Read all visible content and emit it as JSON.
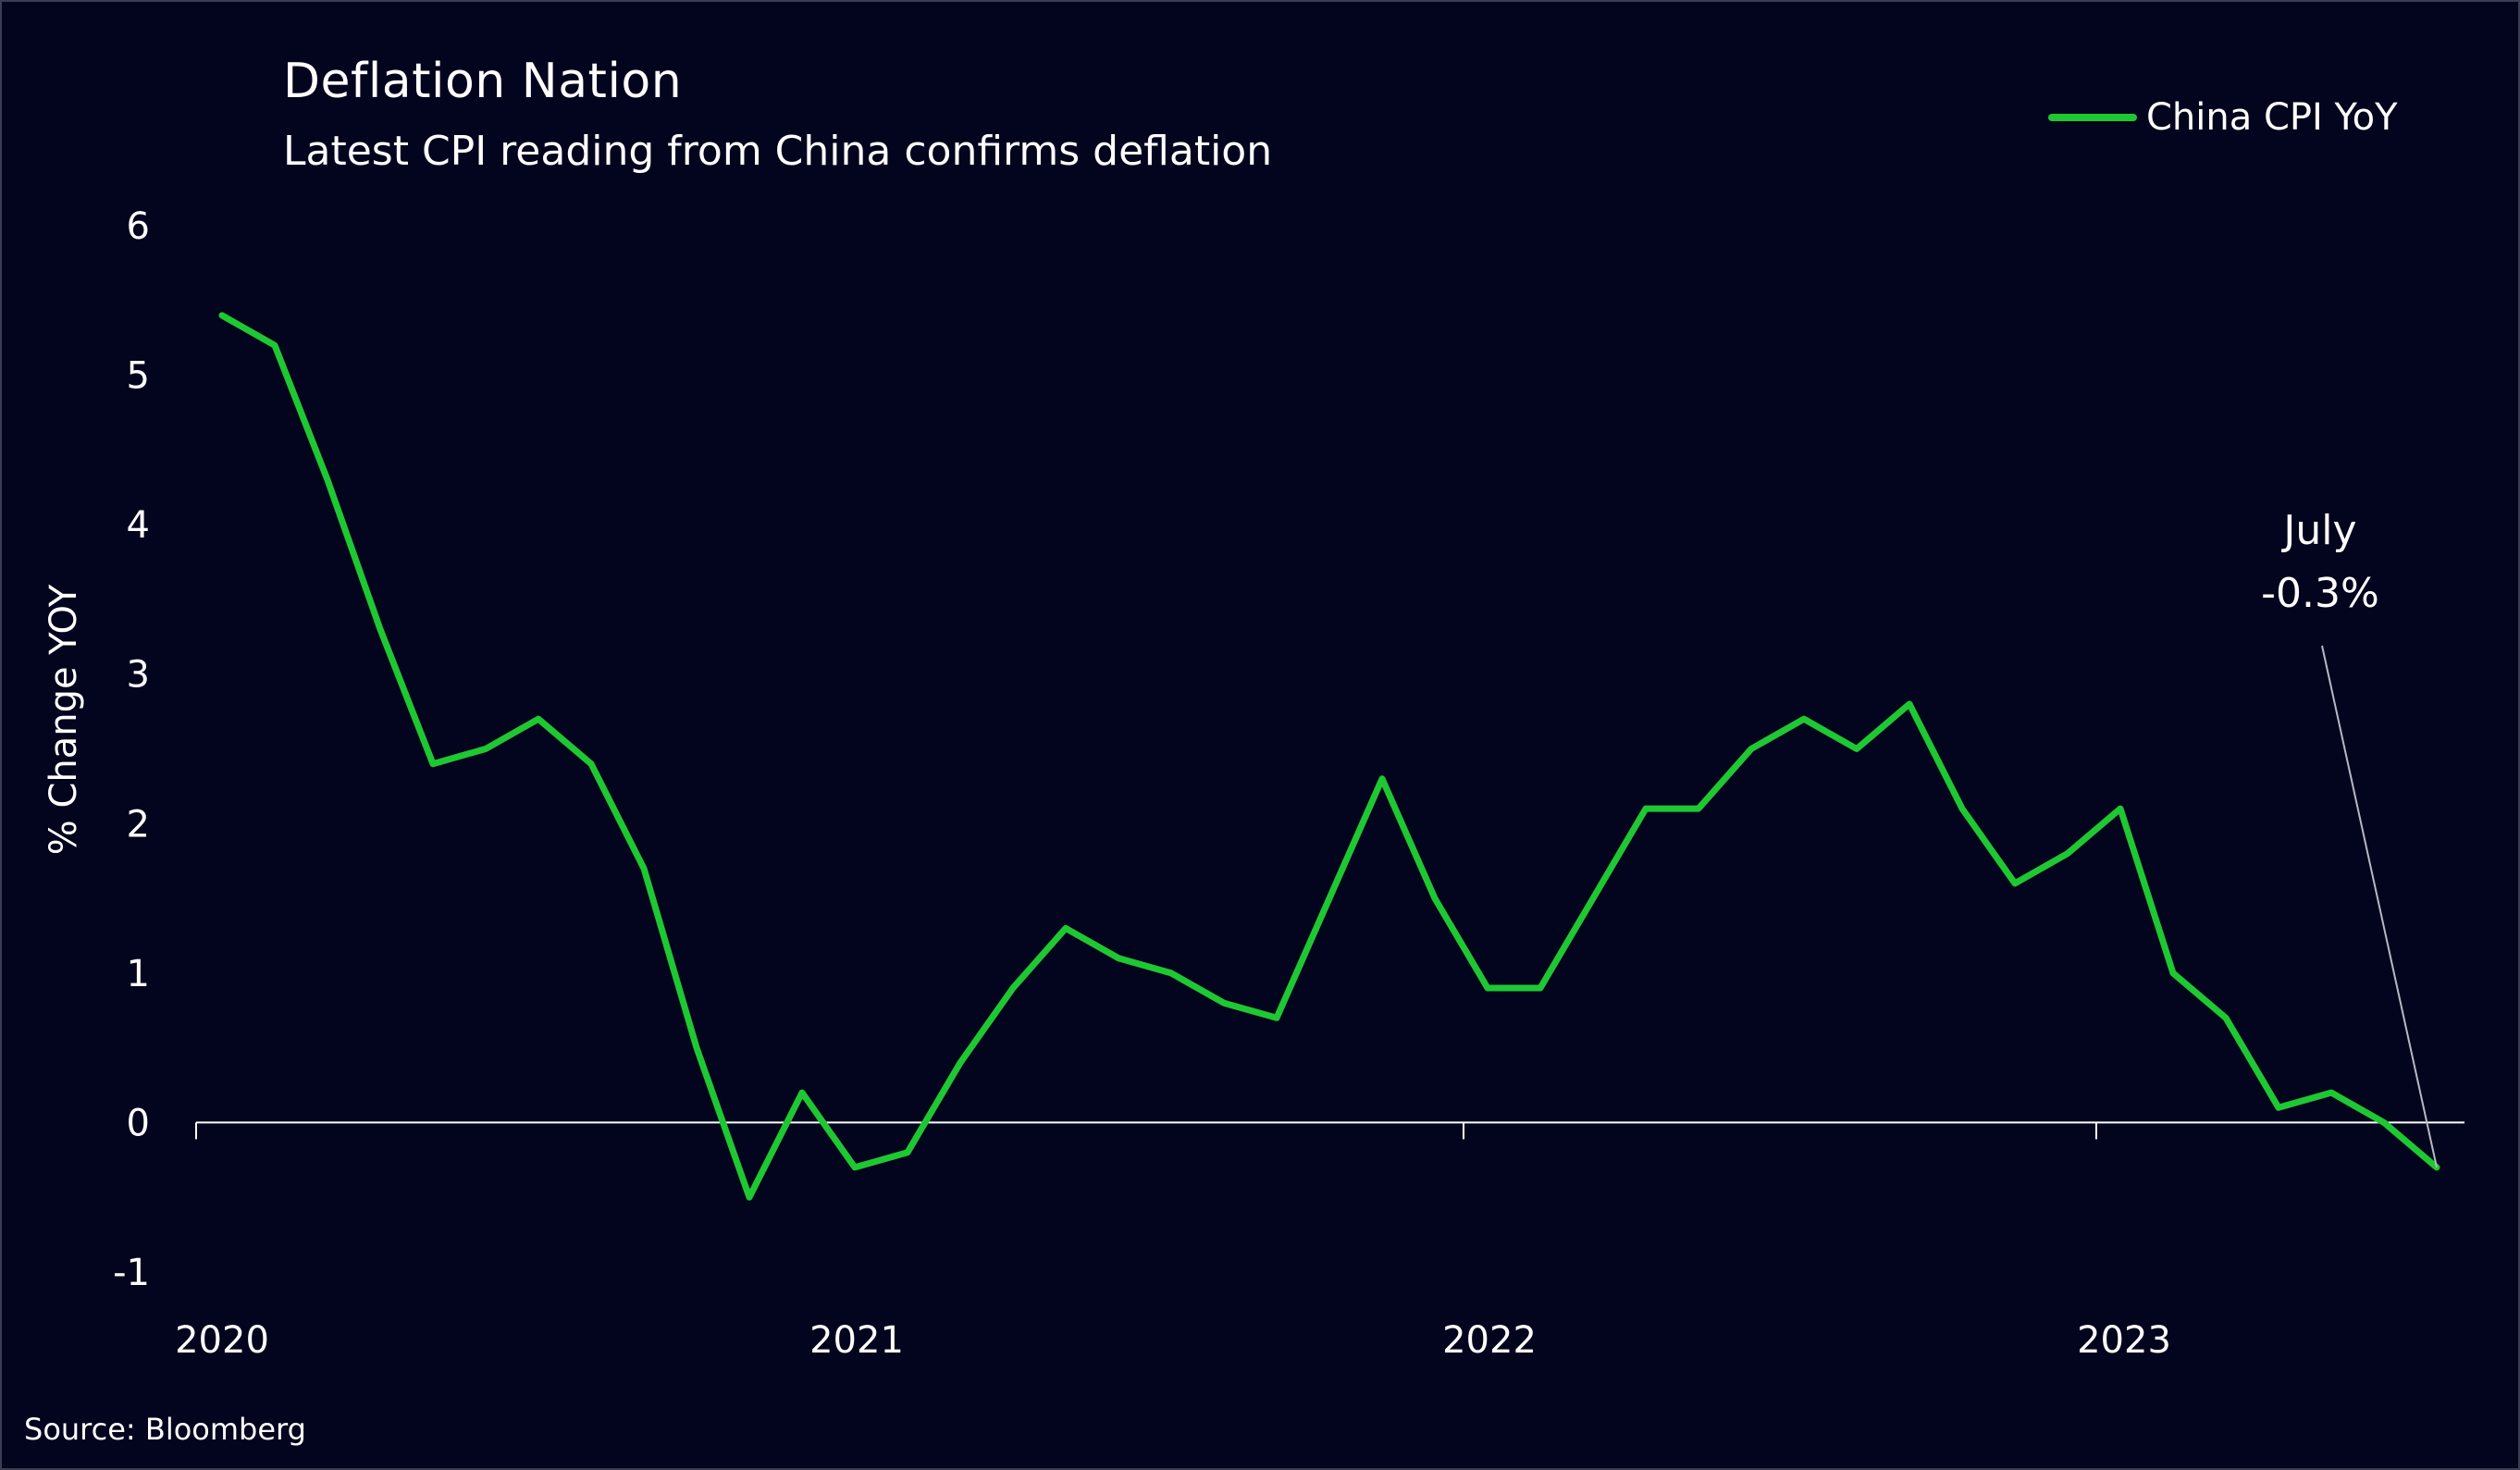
{
  "chart_data": {
    "type": "line",
    "title": "Deflation Nation",
    "subtitle": "Latest CPI reading from China confirms deflation",
    "ylabel": "% Change YOY",
    "xlabel": "",
    "ylim": [
      -1,
      6
    ],
    "yticks": [
      "6",
      "5",
      "4",
      "3",
      "2",
      "1",
      "0",
      "-1"
    ],
    "xticks": [
      "2020",
      "2021",
      "2022",
      "2023"
    ],
    "grid": false,
    "legend_position": "top-right",
    "series": [
      {
        "name": "China CPI YoY",
        "color": "#1ec832",
        "x": [
          "2020-01",
          "2020-02",
          "2020-03",
          "2020-04",
          "2020-05",
          "2020-06",
          "2020-07",
          "2020-08",
          "2020-09",
          "2020-10",
          "2020-11",
          "2020-12",
          "2021-01",
          "2021-02",
          "2021-03",
          "2021-04",
          "2021-05",
          "2021-06",
          "2021-07",
          "2021-08",
          "2021-09",
          "2021-10",
          "2021-11",
          "2021-12",
          "2022-01",
          "2022-02",
          "2022-03",
          "2022-04",
          "2022-05",
          "2022-06",
          "2022-07",
          "2022-08",
          "2022-09",
          "2022-10",
          "2022-11",
          "2022-12",
          "2023-01",
          "2023-02",
          "2023-03",
          "2023-04",
          "2023-05",
          "2023-06",
          "2023-07"
        ],
        "values": [
          5.4,
          5.2,
          4.3,
          3.3,
          2.4,
          2.5,
          2.7,
          2.4,
          1.7,
          0.5,
          -0.5,
          0.2,
          -0.3,
          -0.2,
          0.4,
          0.9,
          1.3,
          1.1,
          1.0,
          0.8,
          0.7,
          1.5,
          2.3,
          1.5,
          0.9,
          0.9,
          1.5,
          2.1,
          2.1,
          2.5,
          2.7,
          2.5,
          2.8,
          2.1,
          1.6,
          1.8,
          2.1,
          1.0,
          0.7,
          0.1,
          0.2,
          0.0,
          -0.3
        ]
      }
    ],
    "annotations": [
      {
        "text_line1": "July",
        "text_line2": "-0.3%",
        "x": "2023-07",
        "y": -0.3
      }
    ]
  },
  "source": "Source: Bloomberg",
  "colors": {
    "background": "#03041e",
    "line": "#1ec832",
    "text": "#ffffff",
    "axis": "#ffffff"
  }
}
